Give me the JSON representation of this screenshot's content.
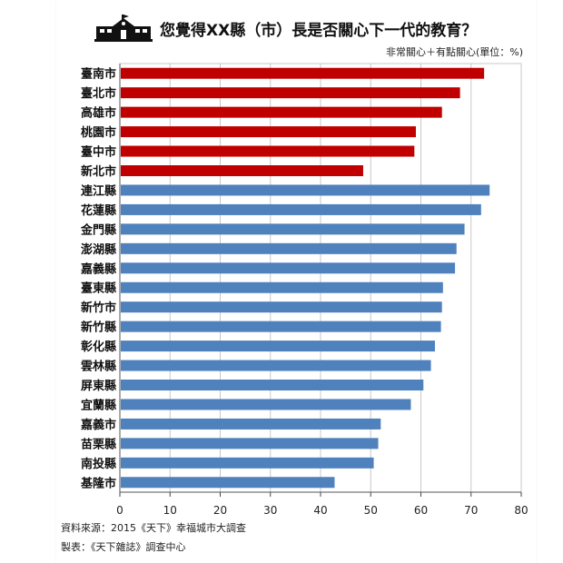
{
  "chart_data": {
    "type": "bar",
    "orientation": "horizontal",
    "title": "您覺得XX縣（市）長是否關心下一代的教育？",
    "subtitle": "非常關心＋有點關心(單位：%)",
    "categories": [
      "臺南市",
      "臺北市",
      "高雄市",
      "桃園市",
      "臺中市",
      "新北市",
      "連江縣",
      "花蓮縣",
      "金門縣",
      "澎湖縣",
      "嘉義縣",
      "臺東縣",
      "新竹市",
      "新竹縣",
      "彰化縣",
      "雲林縣",
      "屏東縣",
      "宜蘭縣",
      "嘉義市",
      "苗栗縣",
      "南投縣",
      "基隆市"
    ],
    "values": [
      72.6,
      67.8,
      64.2,
      59.0,
      58.7,
      48.5,
      73.7,
      72.0,
      68.7,
      67.1,
      66.8,
      64.4,
      64.2,
      64.0,
      62.8,
      62.0,
      60.5,
      58.0,
      52.0,
      51.5,
      50.6,
      42.8
    ],
    "groups": [
      {
        "members": 6,
        "color": "#c00000"
      },
      {
        "members": 16,
        "color": "#4f81bd"
      }
    ],
    "xlim": [
      0,
      80
    ],
    "xticks": [
      "0",
      "10",
      "20",
      "30",
      "40",
      "50",
      "60",
      "70",
      "80"
    ],
    "grid": true
  },
  "icon": "school-building-icon",
  "source": "資料來源：2015《天下》幸福城市大調查",
  "credit": "製表：《天下雜誌》調查中心"
}
